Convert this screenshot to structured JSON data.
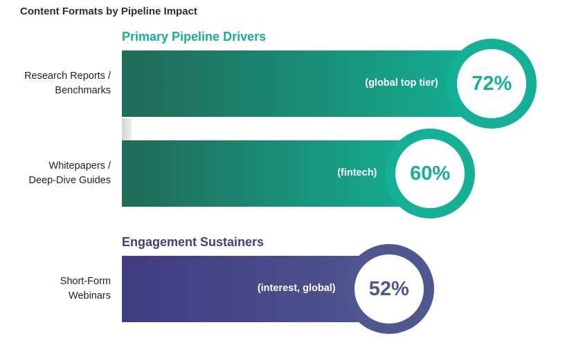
{
  "colors": {
    "primary_dark": "#1f6f5c",
    "primary_light": "#14b196",
    "secondary_dark": "#433d82",
    "secondary_light": "#4e5790"
  },
  "chart_data": {
    "type": "bar",
    "orientation": "horizontal",
    "title": "Content Formats by Pipeline Impact",
    "unit": "%",
    "xlim": [
      0,
      100
    ],
    "grid": false,
    "legend": "none",
    "groups": [
      {
        "name": "Primary Pipeline Drivers",
        "items": [
          {
            "label": "Research Reports /\nBenchmarks",
            "value": 72,
            "value_label": "72%",
            "note": "(global top tier)"
          },
          {
            "label": "Whitepapers /\nDeep-Dive Guides",
            "value": 60,
            "value_label": "60%",
            "note": "(fintech)"
          }
        ]
      },
      {
        "name": "Engagement Sustainers",
        "items": [
          {
            "label": "Short-Form\nWebinars",
            "value": 52,
            "value_label": "52%",
            "note": "(interest, global)"
          }
        ]
      }
    ]
  }
}
